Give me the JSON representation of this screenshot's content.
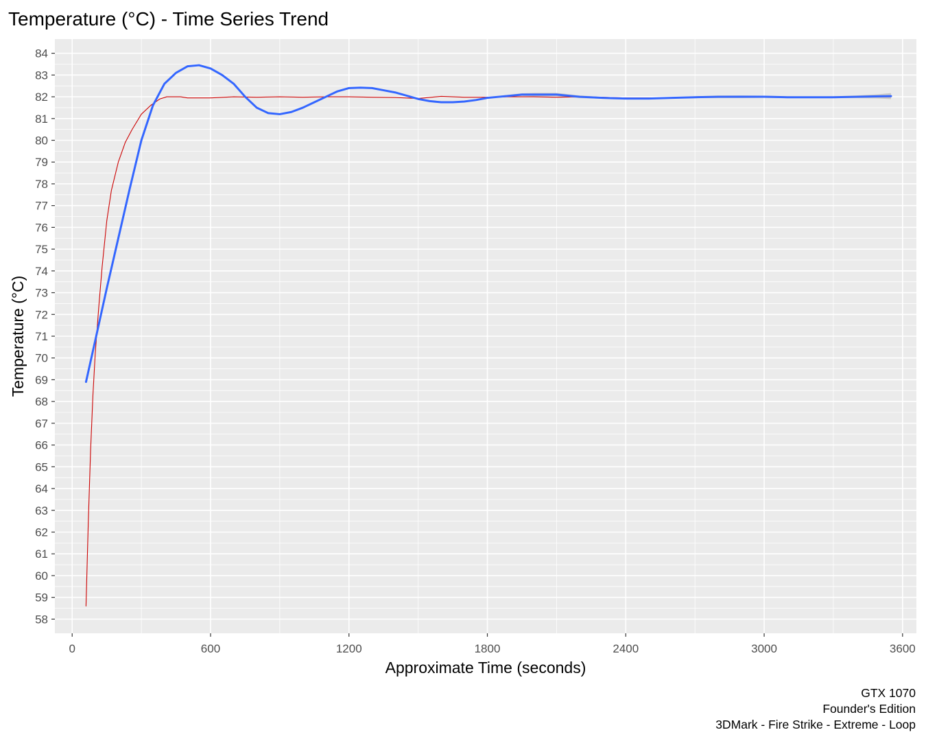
{
  "chart_data": {
    "type": "line",
    "title": "Temperature (°C) - Time Series Trend",
    "xlabel": "Approximate Time (seconds)",
    "ylabel": "Temperature (°C)",
    "xlim": [
      -75,
      3660
    ],
    "ylim": [
      57.35,
      84.65
    ],
    "x_ticks": [
      0,
      600,
      1200,
      1800,
      2400,
      3000,
      3600
    ],
    "x_tick_labels": [
      "0",
      "600",
      "1200",
      "1800",
      "2400",
      "3000",
      "3600"
    ],
    "y_ticks": [
      58,
      59,
      60,
      61,
      62,
      63,
      64,
      65,
      66,
      67,
      68,
      69,
      70,
      71,
      72,
      73,
      74,
      75,
      76,
      77,
      78,
      79,
      80,
      81,
      82,
      83,
      84
    ],
    "y_tick_labels": [
      "58",
      "59",
      "60",
      "61",
      "62",
      "63",
      "64",
      "65",
      "66",
      "67",
      "68",
      "69",
      "70",
      "71",
      "72",
      "73",
      "74",
      "75",
      "76",
      "77",
      "78",
      "79",
      "80",
      "81",
      "82",
      "83",
      "84"
    ],
    "grid": true,
    "panel_background": "#ebebeb",
    "grid_color": "#ffffff",
    "caption": [
      "GTX 1070",
      "Founder's Edition",
      "3DMark - Fire Strike - Extreme - Loop"
    ],
    "series": [
      {
        "kind": "raw",
        "color": "#cc0000",
        "x": [
          60,
          70,
          80,
          90,
          100,
          115,
          130,
          150,
          170,
          200,
          230,
          260,
          300,
          340,
          380,
          410,
          440,
          470,
          500,
          540,
          600,
          700,
          800,
          900,
          1000,
          1100,
          1200,
          1300,
          1400,
          1500,
          1600,
          1700,
          1800,
          1900,
          2000,
          2100,
          2200,
          2300,
          2400,
          2500,
          2600,
          2700,
          2800,
          2900,
          3000,
          3100,
          3200,
          3300,
          3400,
          3500,
          3550
        ],
        "y": [
          58.6,
          62.5,
          65.8,
          68.3,
          70.2,
          72.3,
          74.2,
          76.3,
          77.7,
          79.0,
          79.9,
          80.5,
          81.2,
          81.6,
          81.9,
          82.0,
          82.0,
          82.0,
          81.95,
          81.95,
          81.95,
          82.0,
          81.98,
          82.0,
          81.98,
          82.0,
          82.0,
          81.98,
          81.97,
          81.92,
          82.02,
          81.98,
          81.98,
          82.0,
          82.0,
          81.98,
          82.0,
          81.98,
          81.95,
          81.95,
          81.95,
          82.0,
          82.0,
          82.0,
          82.0,
          81.98,
          82.0,
          81.98,
          82.0,
          82.0,
          82.0
        ]
      },
      {
        "kind": "smooth",
        "color": "#3366ff",
        "ribbon_color": "#c4c4c4",
        "x": [
          60,
          100,
          150,
          200,
          250,
          300,
          350,
          400,
          450,
          500,
          550,
          600,
          650,
          700,
          750,
          800,
          850,
          900,
          950,
          1000,
          1050,
          1100,
          1150,
          1200,
          1250,
          1300,
          1350,
          1400,
          1450,
          1500,
          1550,
          1600,
          1650,
          1700,
          1750,
          1800,
          1850,
          1900,
          1950,
          2000,
          2100,
          2200,
          2300,
          2400,
          2500,
          2600,
          2700,
          2800,
          2900,
          3000,
          3100,
          3200,
          3300,
          3400,
          3500,
          3550
        ],
        "y": [
          68.9,
          70.8,
          73.2,
          75.5,
          77.8,
          80.0,
          81.6,
          82.6,
          83.1,
          83.4,
          83.45,
          83.3,
          83.0,
          82.6,
          82.0,
          81.5,
          81.25,
          81.2,
          81.3,
          81.5,
          81.75,
          82.0,
          82.25,
          82.4,
          82.42,
          82.4,
          82.3,
          82.2,
          82.05,
          81.9,
          81.8,
          81.75,
          81.75,
          81.78,
          81.85,
          81.95,
          82.0,
          82.05,
          82.1,
          82.1,
          82.1,
          82.0,
          81.95,
          81.92,
          81.92,
          81.95,
          81.98,
          82.0,
          82.0,
          82.0,
          81.98,
          81.98,
          81.98,
          82.0,
          82.02,
          82.03
        ],
        "ribbon_halfwidth": [
          0.05,
          0.03,
          0.03,
          0.03,
          0.03,
          0.03,
          0.03,
          0.03,
          0.03,
          0.03,
          0.03,
          0.03,
          0.03,
          0.03,
          0.03,
          0.03,
          0.03,
          0.03,
          0.03,
          0.03,
          0.03,
          0.03,
          0.03,
          0.03,
          0.03,
          0.03,
          0.03,
          0.03,
          0.03,
          0.03,
          0.03,
          0.03,
          0.03,
          0.03,
          0.03,
          0.03,
          0.04,
          0.05,
          0.06,
          0.08,
          0.08,
          0.06,
          0.04,
          0.03,
          0.03,
          0.03,
          0.04,
          0.06,
          0.06,
          0.05,
          0.04,
          0.03,
          0.04,
          0.06,
          0.1,
          0.14
        ]
      }
    ]
  }
}
